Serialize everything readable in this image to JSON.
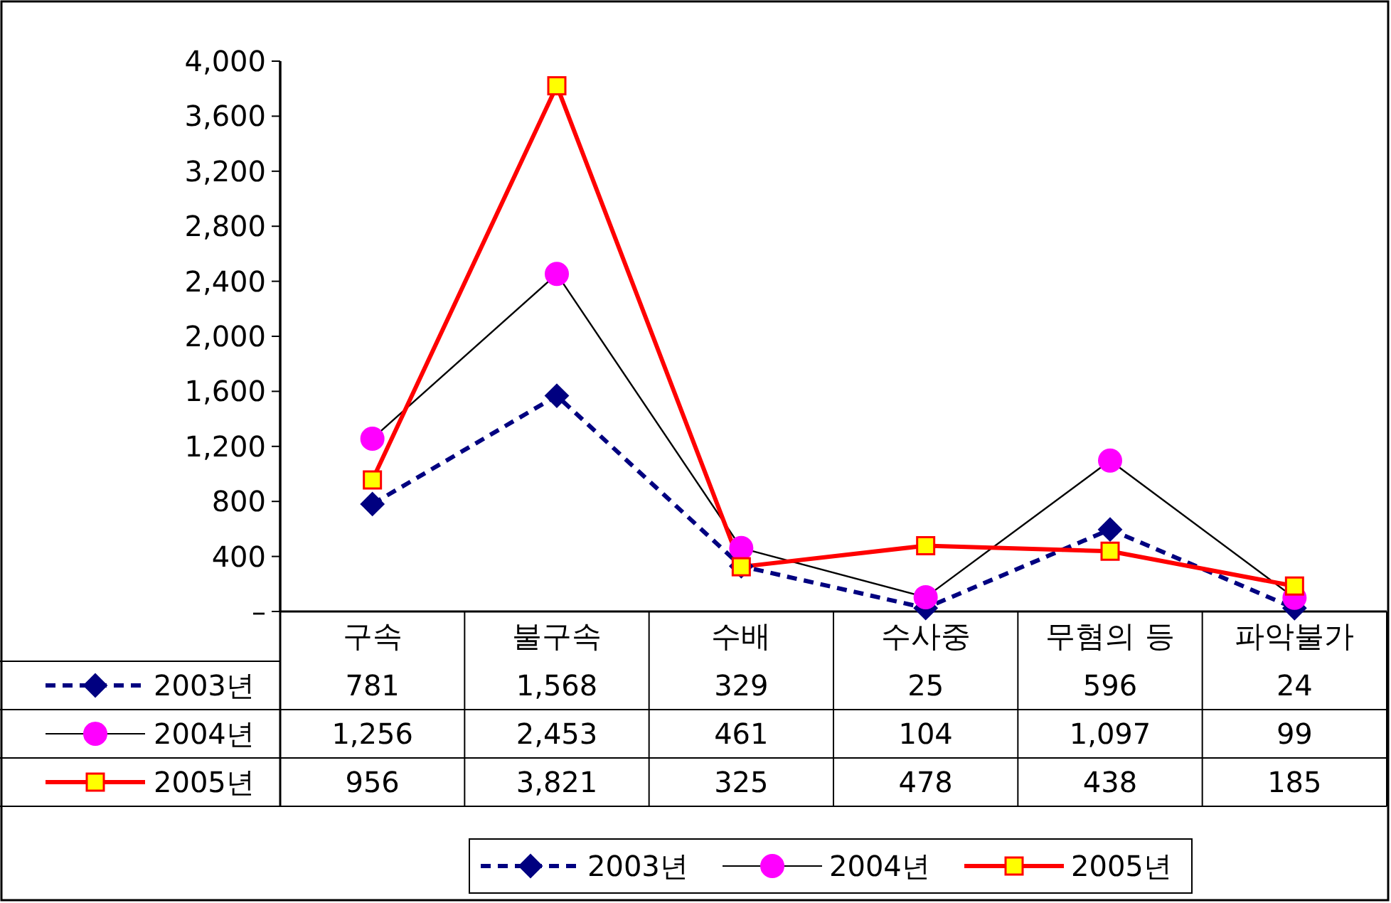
{
  "chart_data": {
    "type": "line",
    "categories": [
      "구속",
      "불구속",
      "수배",
      "수사중",
      "무혐의 등",
      "파악불가"
    ],
    "series": [
      {
        "name": "2003년",
        "color": "#000080",
        "colors": [
          "#000080",
          "#000080",
          "#000080",
          "#000080",
          "#000080",
          "#000080"
        ],
        "marker": "diamond",
        "line_style": "dashed",
        "values": [
          781,
          1568,
          329,
          25,
          596,
          24
        ],
        "value_labels": [
          "781",
          "1,568",
          "329",
          "25",
          "596",
          "24"
        ]
      },
      {
        "name": "2004년",
        "color": "#000000",
        "colors": [
          "#ff00ff",
          "#ff00ff",
          "#ff00ff",
          "#ff00ff",
          "#ff00ff",
          "#ff00ff"
        ],
        "marker": "circle",
        "line_style": "solid",
        "values": [
          1256,
          2453,
          461,
          104,
          1097,
          99
        ],
        "value_labels": [
          "1,256",
          "2,453",
          "461",
          "104",
          "1,097",
          "99"
        ]
      },
      {
        "name": "2005년",
        "color": "#ff0000",
        "colors": [
          "#ffff00",
          "#ffff00",
          "#ffff00",
          "#ffff00",
          "#ffff00",
          "#ffff00"
        ],
        "marker": "square",
        "line_style": "solid",
        "values": [
          956,
          3821,
          325,
          478,
          438,
          185
        ],
        "value_labels": [
          "956",
          "3,821",
          "325",
          "478",
          "438",
          "185"
        ]
      }
    ],
    "ylim": [
      0,
      4000
    ],
    "yticks": [
      {
        "value": 0,
        "label": "–"
      },
      {
        "value": 400,
        "label": "400"
      },
      {
        "value": 800,
        "label": "800"
      },
      {
        "value": 1200,
        "label": "1,200"
      },
      {
        "value": 1600,
        "label": "1,600"
      },
      {
        "value": 2000,
        "label": "2,000"
      },
      {
        "value": 2400,
        "label": "2,400"
      },
      {
        "value": 2800,
        "label": "2,800"
      },
      {
        "value": 3200,
        "label": "3,200"
      },
      {
        "value": 3600,
        "label": "3,600"
      },
      {
        "value": 4000,
        "label": "4,000"
      }
    ],
    "grid": false,
    "legend": "bottom"
  }
}
